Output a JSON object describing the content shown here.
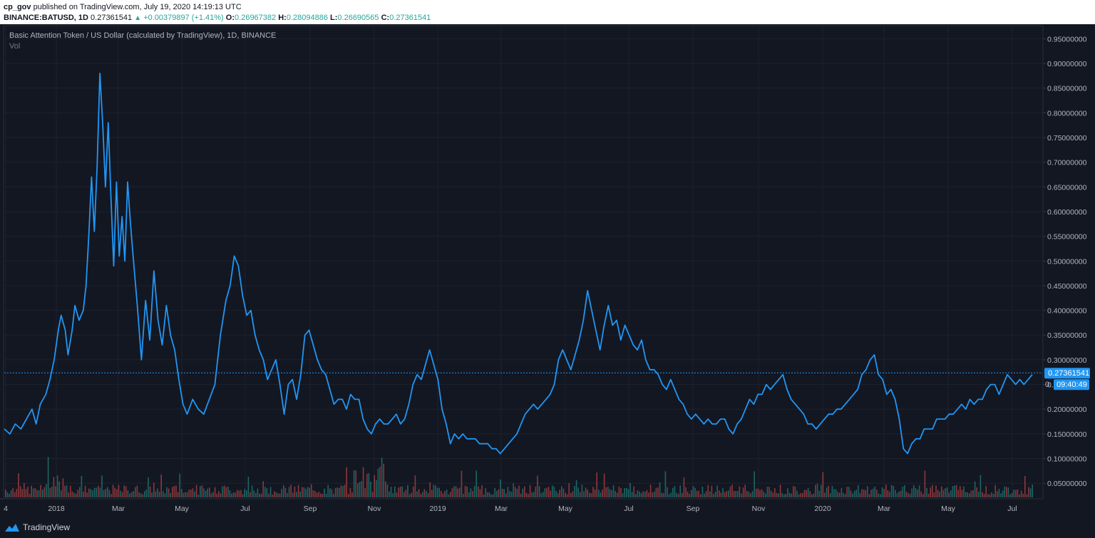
{
  "header": {
    "publisher": "cp_gov",
    "published_text": "published on TradingView.com, July 19, 2020 14:19:13 UTC",
    "symbol": "BINANCE:BATUSD, 1D",
    "price": "0.27361541",
    "change": "+0.00379897 (+1.41%)",
    "o_label": "O:",
    "o_value": "0.26967382",
    "h_label": "H:",
    "h_value": "0.28094886",
    "l_label": "L:",
    "l_value": "0.26690565",
    "c_label": "C:",
    "c_value": "0.27361541"
  },
  "chart_title": "Basic Attention Token / US Dollar (calculated by TradingView), 1D, BINANCE",
  "volume_label": "Vol",
  "price_tag": "0.27361541",
  "countdown_prefix": "0.",
  "countdown": "09:40:49",
  "brand": "TradingView",
  "colors": {
    "background": "#131722",
    "line": "#2196f3",
    "grid": "#1e222d",
    "up": "#26a69a",
    "down": "#ef5350",
    "tag": "#2196f3"
  },
  "chart_data": {
    "type": "line",
    "xlabels": [
      "4",
      "2018",
      "Mar",
      "May",
      "Jul",
      "Sep",
      "Nov",
      "2019",
      "Mar",
      "May",
      "Jul",
      "Sep",
      "Nov",
      "2020",
      "Mar",
      "May",
      "Jul"
    ],
    "ylabels": [
      "0.95000000",
      "0.90000000",
      "0.85000000",
      "0.80000000",
      "0.75000000",
      "0.70000000",
      "0.65000000",
      "0.60000000",
      "0.55000000",
      "0.50000000",
      "0.45000000",
      "0.40000000",
      "0.35000000",
      "0.30000000",
      "0.25000000",
      "0.20000000",
      "0.15000000",
      "0.10000000",
      "0.05000000"
    ],
    "ylim": [
      0.02,
      0.975
    ],
    "current_price": 0.27361541,
    "series": [
      {
        "values": [
          [
            0.0,
            0.16
          ],
          [
            0.4,
            0.15
          ],
          [
            0.8,
            0.17
          ],
          [
            1.2,
            0.16
          ],
          [
            1.6,
            0.18
          ],
          [
            2.0,
            0.2
          ],
          [
            2.3,
            0.17
          ],
          [
            2.6,
            0.21
          ],
          [
            3.0,
            0.23
          ],
          [
            3.3,
            0.26
          ],
          [
            3.6,
            0.3
          ],
          [
            3.9,
            0.36
          ],
          [
            4.1,
            0.39
          ],
          [
            4.4,
            0.36
          ],
          [
            4.6,
            0.31
          ],
          [
            4.9,
            0.36
          ],
          [
            5.1,
            0.41
          ],
          [
            5.4,
            0.38
          ],
          [
            5.7,
            0.4
          ],
          [
            5.9,
            0.45
          ],
          [
            6.1,
            0.55
          ],
          [
            6.3,
            0.67
          ],
          [
            6.5,
            0.56
          ],
          [
            6.7,
            0.69
          ],
          [
            6.9,
            0.88
          ],
          [
            7.1,
            0.78
          ],
          [
            7.3,
            0.65
          ],
          [
            7.5,
            0.78
          ],
          [
            7.7,
            0.63
          ],
          [
            7.9,
            0.49
          ],
          [
            8.1,
            0.66
          ],
          [
            8.3,
            0.51
          ],
          [
            8.5,
            0.59
          ],
          [
            8.7,
            0.5
          ],
          [
            8.9,
            0.66
          ],
          [
            9.1,
            0.58
          ],
          [
            9.3,
            0.51
          ],
          [
            9.6,
            0.41
          ],
          [
            9.9,
            0.3
          ],
          [
            10.2,
            0.42
          ],
          [
            10.5,
            0.34
          ],
          [
            10.8,
            0.48
          ],
          [
            11.1,
            0.38
          ],
          [
            11.4,
            0.33
          ],
          [
            11.7,
            0.41
          ],
          [
            12.0,
            0.35
          ],
          [
            12.3,
            0.32
          ],
          [
            12.6,
            0.26
          ],
          [
            12.9,
            0.21
          ],
          [
            13.2,
            0.19
          ],
          [
            13.6,
            0.22
          ],
          [
            14.0,
            0.2
          ],
          [
            14.4,
            0.19
          ],
          [
            14.8,
            0.22
          ],
          [
            15.2,
            0.25
          ],
          [
            15.6,
            0.35
          ],
          [
            16.0,
            0.42
          ],
          [
            16.3,
            0.45
          ],
          [
            16.6,
            0.51
          ],
          [
            16.9,
            0.49
          ],
          [
            17.2,
            0.43
          ],
          [
            17.5,
            0.39
          ],
          [
            17.8,
            0.4
          ],
          [
            18.1,
            0.35
          ],
          [
            18.4,
            0.32
          ],
          [
            18.7,
            0.3
          ],
          [
            19.0,
            0.26
          ],
          [
            19.3,
            0.28
          ],
          [
            19.6,
            0.3
          ],
          [
            19.9,
            0.25
          ],
          [
            20.2,
            0.19
          ],
          [
            20.5,
            0.25
          ],
          [
            20.8,
            0.26
          ],
          [
            21.1,
            0.22
          ],
          [
            21.4,
            0.27
          ],
          [
            21.7,
            0.35
          ],
          [
            22.0,
            0.36
          ],
          [
            22.3,
            0.33
          ],
          [
            22.6,
            0.3
          ],
          [
            22.9,
            0.28
          ],
          [
            23.2,
            0.27
          ],
          [
            23.5,
            0.24
          ],
          [
            23.8,
            0.21
          ],
          [
            24.1,
            0.22
          ],
          [
            24.4,
            0.22
          ],
          [
            24.7,
            0.2
          ],
          [
            25.0,
            0.23
          ],
          [
            25.3,
            0.22
          ],
          [
            25.6,
            0.22
          ],
          [
            25.9,
            0.18
          ],
          [
            26.2,
            0.16
          ],
          [
            26.5,
            0.15
          ],
          [
            26.8,
            0.17
          ],
          [
            27.1,
            0.18
          ],
          [
            27.4,
            0.17
          ],
          [
            27.7,
            0.17
          ],
          [
            28.0,
            0.18
          ],
          [
            28.3,
            0.19
          ],
          [
            28.6,
            0.17
          ],
          [
            28.9,
            0.18
          ],
          [
            29.2,
            0.21
          ],
          [
            29.5,
            0.25
          ],
          [
            29.8,
            0.27
          ],
          [
            30.1,
            0.26
          ],
          [
            30.4,
            0.29
          ],
          [
            30.7,
            0.32
          ],
          [
            31.0,
            0.29
          ],
          [
            31.3,
            0.26
          ],
          [
            31.6,
            0.2
          ],
          [
            31.9,
            0.17
          ],
          [
            32.2,
            0.13
          ],
          [
            32.5,
            0.15
          ],
          [
            32.8,
            0.14
          ],
          [
            33.1,
            0.15
          ],
          [
            33.4,
            0.14
          ],
          [
            33.7,
            0.14
          ],
          [
            34.0,
            0.14
          ],
          [
            34.3,
            0.13
          ],
          [
            34.6,
            0.13
          ],
          [
            34.9,
            0.13
          ],
          [
            35.2,
            0.12
          ],
          [
            35.5,
            0.12
          ],
          [
            35.8,
            0.11
          ],
          [
            36.1,
            0.12
          ],
          [
            36.4,
            0.13
          ],
          [
            36.7,
            0.14
          ],
          [
            37.0,
            0.15
          ],
          [
            37.3,
            0.17
          ],
          [
            37.6,
            0.19
          ],
          [
            37.9,
            0.2
          ],
          [
            38.2,
            0.21
          ],
          [
            38.5,
            0.2
          ],
          [
            38.8,
            0.21
          ],
          [
            39.1,
            0.22
          ],
          [
            39.4,
            0.23
          ],
          [
            39.7,
            0.25
          ],
          [
            40.0,
            0.3
          ],
          [
            40.3,
            0.32
          ],
          [
            40.6,
            0.3
          ],
          [
            40.9,
            0.28
          ],
          [
            41.2,
            0.31
          ],
          [
            41.5,
            0.34
          ],
          [
            41.8,
            0.38
          ],
          [
            42.1,
            0.44
          ],
          [
            42.4,
            0.4
          ],
          [
            42.7,
            0.36
          ],
          [
            43.0,
            0.32
          ],
          [
            43.3,
            0.37
          ],
          [
            43.6,
            0.41
          ],
          [
            43.9,
            0.37
          ],
          [
            44.2,
            0.38
          ],
          [
            44.5,
            0.34
          ],
          [
            44.8,
            0.37
          ],
          [
            45.1,
            0.35
          ],
          [
            45.4,
            0.33
          ],
          [
            45.7,
            0.32
          ],
          [
            46.0,
            0.34
          ],
          [
            46.3,
            0.3
          ],
          [
            46.6,
            0.28
          ],
          [
            46.9,
            0.28
          ],
          [
            47.2,
            0.27
          ],
          [
            47.5,
            0.25
          ],
          [
            47.8,
            0.24
          ],
          [
            48.1,
            0.26
          ],
          [
            48.4,
            0.24
          ],
          [
            48.7,
            0.22
          ],
          [
            49.0,
            0.21
          ],
          [
            49.3,
            0.19
          ],
          [
            49.6,
            0.18
          ],
          [
            49.9,
            0.19
          ],
          [
            50.2,
            0.18
          ],
          [
            50.5,
            0.17
          ],
          [
            50.8,
            0.18
          ],
          [
            51.1,
            0.17
          ],
          [
            51.4,
            0.17
          ],
          [
            51.7,
            0.18
          ],
          [
            52.0,
            0.18
          ],
          [
            52.3,
            0.16
          ],
          [
            52.6,
            0.15
          ],
          [
            52.9,
            0.17
          ],
          [
            53.2,
            0.18
          ],
          [
            53.5,
            0.2
          ],
          [
            53.8,
            0.22
          ],
          [
            54.1,
            0.21
          ],
          [
            54.4,
            0.23
          ],
          [
            54.7,
            0.23
          ],
          [
            55.0,
            0.25
          ],
          [
            55.3,
            0.24
          ],
          [
            55.6,
            0.25
          ],
          [
            55.9,
            0.26
          ],
          [
            56.2,
            0.27
          ],
          [
            56.5,
            0.24
          ],
          [
            56.8,
            0.22
          ],
          [
            57.1,
            0.21
          ],
          [
            57.4,
            0.2
          ],
          [
            57.7,
            0.19
          ],
          [
            58.0,
            0.17
          ],
          [
            58.3,
            0.17
          ],
          [
            58.6,
            0.16
          ],
          [
            58.9,
            0.17
          ],
          [
            59.2,
            0.18
          ],
          [
            59.5,
            0.19
          ],
          [
            59.8,
            0.19
          ],
          [
            60.1,
            0.2
          ],
          [
            60.4,
            0.2
          ],
          [
            60.7,
            0.21
          ],
          [
            61.0,
            0.22
          ],
          [
            61.3,
            0.23
          ],
          [
            61.6,
            0.24
          ],
          [
            61.9,
            0.27
          ],
          [
            62.2,
            0.28
          ],
          [
            62.5,
            0.3
          ],
          [
            62.8,
            0.31
          ],
          [
            63.1,
            0.27
          ],
          [
            63.4,
            0.26
          ],
          [
            63.7,
            0.23
          ],
          [
            64.0,
            0.24
          ],
          [
            64.3,
            0.22
          ],
          [
            64.6,
            0.18
          ],
          [
            64.9,
            0.12
          ],
          [
            65.2,
            0.11
          ],
          [
            65.5,
            0.13
          ],
          [
            65.8,
            0.14
          ],
          [
            66.1,
            0.14
          ],
          [
            66.4,
            0.16
          ],
          [
            66.7,
            0.16
          ],
          [
            67.0,
            0.16
          ],
          [
            67.3,
            0.18
          ],
          [
            67.6,
            0.18
          ],
          [
            67.9,
            0.18
          ],
          [
            68.2,
            0.19
          ],
          [
            68.5,
            0.19
          ],
          [
            68.8,
            0.2
          ],
          [
            69.1,
            0.21
          ],
          [
            69.4,
            0.2
          ],
          [
            69.7,
            0.22
          ],
          [
            70.0,
            0.21
          ],
          [
            70.3,
            0.22
          ],
          [
            70.6,
            0.22
          ],
          [
            70.9,
            0.24
          ],
          [
            71.2,
            0.25
          ],
          [
            71.5,
            0.25
          ],
          [
            71.8,
            0.23
          ],
          [
            72.1,
            0.25
          ],
          [
            72.4,
            0.27
          ],
          [
            72.7,
            0.26
          ],
          [
            73.0,
            0.25
          ],
          [
            73.3,
            0.26
          ],
          [
            73.6,
            0.25
          ],
          [
            73.9,
            0.26
          ],
          [
            74.2,
            0.27
          ]
        ]
      }
    ]
  }
}
